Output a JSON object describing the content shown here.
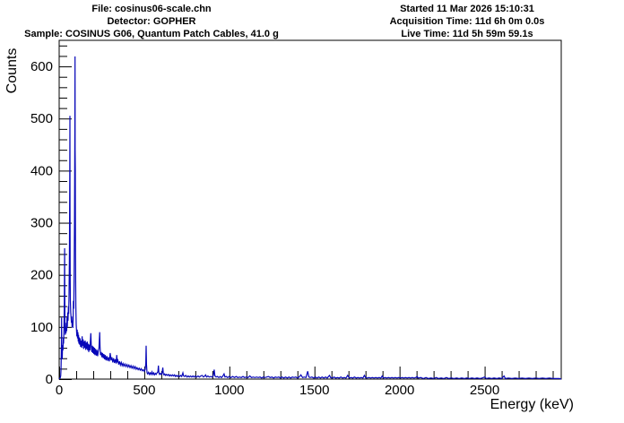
{
  "header_left": {
    "file_line": "File: cosinus06-scale.chn",
    "detector_line": "Detector: GOPHER",
    "sample_line": "Sample: COSINUS G06, Quantum Patch Cables, 41.0 g"
  },
  "header_right": {
    "started_line": "Started 11 Mar 2026 15:10:31",
    "acquisition_line": "Acquisition Time: 11d 6h 0m 0.0s",
    "live_line": "Live Time: 11d 5h 59m 59.1s"
  },
  "chart_data": {
    "type": "line",
    "title": "",
    "xlabel": "Energy (keV)",
    "ylabel": "Counts",
    "xlim": [
      0,
      2950
    ],
    "ylim": [
      0,
      650
    ],
    "x_major_ticks": [
      0,
      500,
      1000,
      1500,
      2000,
      2500
    ],
    "x_minor_step": 100,
    "y_major_ticks": [
      0,
      100,
      200,
      300,
      400,
      500,
      600
    ],
    "y_minor_step": 20,
    "grid": false,
    "legend": null,
    "line_color": "#0606b8",
    "frame_color": "#000000",
    "peak_annotations": [
      {
        "energy_kev": 14,
        "counts": 118
      },
      {
        "energy_kev": 32,
        "counts": 251
      },
      {
        "energy_kev": 63,
        "counts": 505
      },
      {
        "energy_kev": 93,
        "counts": 619
      },
      {
        "energy_kev": 238,
        "counts": 90
      },
      {
        "energy_kev": 511,
        "counts": 64
      },
      {
        "energy_kev": 583,
        "counts": 26
      },
      {
        "energy_kev": 609,
        "counts": 22
      },
      {
        "energy_kev": 911,
        "counts": 18
      },
      {
        "energy_kev": 1460,
        "counts": 15
      },
      {
        "energy_kev": 2614,
        "counts": 6
      }
    ],
    "points": [
      [
        0,
        0
      ],
      [
        3,
        1
      ],
      [
        6,
        2
      ],
      [
        9,
        6
      ],
      [
        11,
        20
      ],
      [
        13,
        60
      ],
      [
        14,
        118
      ],
      [
        15,
        70
      ],
      [
        16,
        45
      ],
      [
        18,
        38
      ],
      [
        20,
        65
      ],
      [
        22,
        55
      ],
      [
        24,
        80
      ],
      [
        26,
        68
      ],
      [
        28,
        95
      ],
      [
        30,
        140
      ],
      [
        32,
        251
      ],
      [
        33,
        150
      ],
      [
        34,
        100
      ],
      [
        36,
        85
      ],
      [
        38,
        100
      ],
      [
        40,
        88
      ],
      [
        42,
        108
      ],
      [
        44,
        92
      ],
      [
        46,
        118
      ],
      [
        48,
        100
      ],
      [
        50,
        128
      ],
      [
        52,
        112
      ],
      [
        54,
        140
      ],
      [
        56,
        125
      ],
      [
        58,
        160
      ],
      [
        60,
        230
      ],
      [
        62,
        380
      ],
      [
        63,
        505
      ],
      [
        64,
        330
      ],
      [
        65,
        190
      ],
      [
        66,
        150
      ],
      [
        68,
        128
      ],
      [
        70,
        118
      ],
      [
        72,
        108
      ],
      [
        74,
        120
      ],
      [
        76,
        100
      ],
      [
        78,
        112
      ],
      [
        80,
        98
      ],
      [
        82,
        115
      ],
      [
        84,
        150
      ],
      [
        86,
        135
      ],
      [
        88,
        200
      ],
      [
        90,
        300
      ],
      [
        92,
        480
      ],
      [
        93,
        619
      ],
      [
        94,
        440
      ],
      [
        95,
        403
      ],
      [
        96,
        240
      ],
      [
        98,
        140
      ],
      [
        100,
        105
      ],
      [
        102,
        92
      ],
      [
        104,
        82
      ],
      [
        106,
        95
      ],
      [
        108,
        78
      ],
      [
        110,
        90
      ],
      [
        112,
        72
      ],
      [
        114,
        85
      ],
      [
        116,
        68
      ],
      [
        118,
        80
      ],
      [
        120,
        66
      ],
      [
        123,
        78
      ],
      [
        126,
        62
      ],
      [
        129,
        74
      ],
      [
        132,
        60
      ],
      [
        135,
        82
      ],
      [
        138,
        64
      ],
      [
        141,
        76
      ],
      [
        144,
        58
      ],
      [
        147,
        72
      ],
      [
        150,
        60
      ],
      [
        153,
        74
      ],
      [
        156,
        56
      ],
      [
        159,
        70
      ],
      [
        162,
        58
      ],
      [
        165,
        72
      ],
      [
        168,
        55
      ],
      [
        171,
        68
      ],
      [
        174,
        52
      ],
      [
        177,
        66
      ],
      [
        180,
        55
      ],
      [
        183,
        70
      ],
      [
        186,
        88
      ],
      [
        189,
        60
      ],
      [
        192,
        52
      ],
      [
        195,
        64
      ],
      [
        198,
        50
      ],
      [
        201,
        62
      ],
      [
        204,
        48
      ],
      [
        207,
        60
      ],
      [
        210,
        46
      ],
      [
        214,
        58
      ],
      [
        218,
        45
      ],
      [
        222,
        56
      ],
      [
        226,
        44
      ],
      [
        230,
        54
      ],
      [
        234,
        60
      ],
      [
        238,
        90
      ],
      [
        240,
        62
      ],
      [
        243,
        46
      ],
      [
        247,
        52
      ],
      [
        251,
        42
      ],
      [
        255,
        50
      ],
      [
        259,
        40
      ],
      [
        263,
        48
      ],
      [
        267,
        38
      ],
      [
        271,
        46
      ],
      [
        275,
        36
      ],
      [
        280,
        44
      ],
      [
        285,
        35
      ],
      [
        290,
        42
      ],
      [
        295,
        34
      ],
      [
        300,
        50
      ],
      [
        305,
        36
      ],
      [
        310,
        42
      ],
      [
        315,
        32
      ],
      [
        320,
        40
      ],
      [
        325,
        31
      ],
      [
        330,
        38
      ],
      [
        335,
        30
      ],
      [
        338,
        46
      ],
      [
        341,
        32
      ],
      [
        345,
        36
      ],
      [
        350,
        28
      ],
      [
        355,
        34
      ],
      [
        360,
        27
      ],
      [
        365,
        32
      ],
      [
        370,
        26
      ],
      [
        375,
        30
      ],
      [
        380,
        25
      ],
      [
        386,
        29
      ],
      [
        392,
        24
      ],
      [
        398,
        28
      ],
      [
        404,
        23
      ],
      [
        410,
        27
      ],
      [
        416,
        22
      ],
      [
        422,
        26
      ],
      [
        428,
        21
      ],
      [
        434,
        25
      ],
      [
        440,
        20
      ],
      [
        446,
        24
      ],
      [
        452,
        19
      ],
      [
        458,
        22
      ],
      [
        464,
        18
      ],
      [
        470,
        21
      ],
      [
        476,
        17
      ],
      [
        482,
        20
      ],
      [
        488,
        16
      ],
      [
        494,
        18
      ],
      [
        500,
        15
      ],
      [
        505,
        18
      ],
      [
        509,
        30
      ],
      [
        511,
        64
      ],
      [
        513,
        28
      ],
      [
        516,
        12
      ],
      [
        520,
        10
      ],
      [
        525,
        13
      ],
      [
        530,
        9
      ],
      [
        535,
        12
      ],
      [
        540,
        9
      ],
      [
        545,
        14
      ],
      [
        550,
        9
      ],
      [
        555,
        12
      ],
      [
        560,
        8
      ],
      [
        565,
        11
      ],
      [
        570,
        9
      ],
      [
        575,
        12
      ],
      [
        580,
        14
      ],
      [
        583,
        26
      ],
      [
        586,
        12
      ],
      [
        590,
        9
      ],
      [
        595,
        11
      ],
      [
        600,
        9
      ],
      [
        605,
        12
      ],
      [
        609,
        22
      ],
      [
        612,
        10
      ],
      [
        616,
        8
      ],
      [
        620,
        10
      ],
      [
        625,
        7
      ],
      [
        630,
        9
      ],
      [
        636,
        7
      ],
      [
        642,
        9
      ],
      [
        648,
        6
      ],
      [
        654,
        8
      ],
      [
        660,
        6
      ],
      [
        666,
        8
      ],
      [
        672,
        6
      ],
      [
        678,
        8
      ],
      [
        684,
        5
      ],
      [
        690,
        7
      ],
      [
        696,
        5
      ],
      [
        702,
        7
      ],
      [
        708,
        5
      ],
      [
        714,
        7
      ],
      [
        720,
        5
      ],
      [
        727,
        12
      ],
      [
        731,
        6
      ],
      [
        737,
        5
      ],
      [
        744,
        7
      ],
      [
        751,
        4
      ],
      [
        758,
        6
      ],
      [
        765,
        4
      ],
      [
        772,
        6
      ],
      [
        779,
        4
      ],
      [
        786,
        6
      ],
      [
        793,
        4
      ],
      [
        800,
        6
      ],
      [
        808,
        4
      ],
      [
        816,
        6
      ],
      [
        824,
        4
      ],
      [
        832,
        6
      ],
      [
        840,
        7
      ],
      [
        848,
        4
      ],
      [
        856,
        6
      ],
      [
        860,
        8
      ],
      [
        866,
        4
      ],
      [
        874,
        6
      ],
      [
        882,
        4
      ],
      [
        890,
        5
      ],
      [
        898,
        4
      ],
      [
        905,
        6
      ],
      [
        911,
        18
      ],
      [
        915,
        6
      ],
      [
        922,
        4
      ],
      [
        930,
        5
      ],
      [
        938,
        3
      ],
      [
        946,
        5
      ],
      [
        954,
        3
      ],
      [
        962,
        6
      ],
      [
        969,
        10
      ],
      [
        974,
        4
      ],
      [
        982,
        5
      ],
      [
        990,
        3
      ],
      [
        1000,
        5
      ],
      [
        1010,
        3
      ],
      [
        1020,
        5
      ],
      [
        1030,
        3
      ],
      [
        1040,
        5
      ],
      [
        1050,
        3
      ],
      [
        1060,
        4
      ],
      [
        1070,
        3
      ],
      [
        1080,
        5
      ],
      [
        1090,
        3
      ],
      [
        1100,
        4
      ],
      [
        1110,
        3
      ],
      [
        1120,
        6
      ],
      [
        1130,
        3
      ],
      [
        1140,
        4
      ],
      [
        1150,
        3
      ],
      [
        1160,
        4
      ],
      [
        1170,
        3
      ],
      [
        1180,
        4
      ],
      [
        1190,
        2
      ],
      [
        1200,
        4
      ],
      [
        1210,
        3
      ],
      [
        1220,
        4
      ],
      [
        1230,
        5
      ],
      [
        1240,
        3
      ],
      [
        1250,
        4
      ],
      [
        1260,
        2
      ],
      [
        1270,
        4
      ],
      [
        1280,
        3
      ],
      [
        1290,
        4
      ],
      [
        1300,
        2
      ],
      [
        1310,
        4
      ],
      [
        1320,
        2
      ],
      [
        1330,
        4
      ],
      [
        1340,
        2
      ],
      [
        1350,
        4
      ],
      [
        1360,
        2
      ],
      [
        1370,
        4
      ],
      [
        1380,
        3
      ],
      [
        1390,
        4
      ],
      [
        1400,
        2
      ],
      [
        1410,
        4
      ],
      [
        1420,
        8
      ],
      [
        1430,
        3
      ],
      [
        1440,
        4
      ],
      [
        1450,
        3
      ],
      [
        1460,
        15
      ],
      [
        1467,
        4
      ],
      [
        1475,
        3
      ],
      [
        1485,
        4
      ],
      [
        1495,
        2
      ],
      [
        1505,
        4
      ],
      [
        1515,
        2
      ],
      [
        1525,
        4
      ],
      [
        1535,
        2
      ],
      [
        1545,
        4
      ],
      [
        1555,
        2
      ],
      [
        1565,
        4
      ],
      [
        1575,
        2
      ],
      [
        1588,
        7
      ],
      [
        1595,
        3
      ],
      [
        1605,
        2
      ],
      [
        1615,
        4
      ],
      [
        1625,
        2
      ],
      [
        1635,
        3
      ],
      [
        1645,
        2
      ],
      [
        1655,
        4
      ],
      [
        1665,
        2
      ],
      [
        1675,
        3
      ],
      [
        1685,
        2
      ],
      [
        1695,
        7
      ],
      [
        1705,
        2
      ],
      [
        1715,
        3
      ],
      [
        1725,
        2
      ],
      [
        1735,
        4
      ],
      [
        1745,
        2
      ],
      [
        1755,
        3
      ],
      [
        1765,
        2
      ],
      [
        1775,
        3
      ],
      [
        1785,
        2
      ],
      [
        1793,
        7
      ],
      [
        1800,
        3
      ],
      [
        1810,
        2
      ],
      [
        1820,
        3
      ],
      [
        1830,
        2
      ],
      [
        1840,
        3
      ],
      [
        1850,
        2
      ],
      [
        1860,
        3
      ],
      [
        1870,
        2
      ],
      [
        1880,
        3
      ],
      [
        1890,
        2
      ],
      [
        1898,
        6
      ],
      [
        1905,
        2
      ],
      [
        1915,
        3
      ],
      [
        1925,
        2
      ],
      [
        1935,
        3
      ],
      [
        1945,
        2
      ],
      [
        1955,
        3
      ],
      [
        1965,
        2
      ],
      [
        1975,
        3
      ],
      [
        1985,
        2
      ],
      [
        1995,
        3
      ],
      [
        2005,
        2
      ],
      [
        2015,
        3
      ],
      [
        2025,
        2
      ],
      [
        2035,
        3
      ],
      [
        2045,
        2
      ],
      [
        2055,
        3
      ],
      [
        2065,
        2
      ],
      [
        2075,
        3
      ],
      [
        2085,
        2
      ],
      [
        2095,
        3
      ],
      [
        2103,
        5
      ],
      [
        2110,
        2
      ],
      [
        2125,
        3
      ],
      [
        2140,
        1
      ],
      [
        2155,
        3
      ],
      [
        2170,
        1
      ],
      [
        2185,
        2
      ],
      [
        2200,
        1
      ],
      [
        2215,
        3
      ],
      [
        2230,
        1
      ],
      [
        2245,
        2
      ],
      [
        2260,
        1
      ],
      [
        2275,
        3
      ],
      [
        2290,
        1
      ],
      [
        2305,
        2
      ],
      [
        2320,
        1
      ],
      [
        2335,
        2
      ],
      [
        2350,
        1
      ],
      [
        2365,
        2
      ],
      [
        2380,
        1
      ],
      [
        2395,
        2
      ],
      [
        2410,
        1
      ],
      [
        2425,
        2
      ],
      [
        2440,
        1
      ],
      [
        2455,
        2
      ],
      [
        2470,
        1
      ],
      [
        2485,
        2
      ],
      [
        2500,
        4
      ],
      [
        2510,
        1
      ],
      [
        2525,
        2
      ],
      [
        2540,
        1
      ],
      [
        2555,
        2
      ],
      [
        2570,
        1
      ],
      [
        2585,
        2
      ],
      [
        2600,
        1
      ],
      [
        2614,
        6
      ],
      [
        2622,
        1
      ],
      [
        2640,
        2
      ],
      [
        2660,
        1
      ],
      [
        2680,
        2
      ],
      [
        2700,
        1
      ],
      [
        2720,
        2
      ],
      [
        2740,
        1
      ],
      [
        2760,
        2
      ],
      [
        2780,
        1
      ],
      [
        2800,
        2
      ],
      [
        2820,
        1
      ],
      [
        2840,
        2
      ],
      [
        2860,
        1
      ],
      [
        2880,
        2
      ],
      [
        2900,
        1
      ],
      [
        2920,
        1
      ],
      [
        2940,
        1
      ],
      [
        2950,
        0
      ]
    ]
  }
}
